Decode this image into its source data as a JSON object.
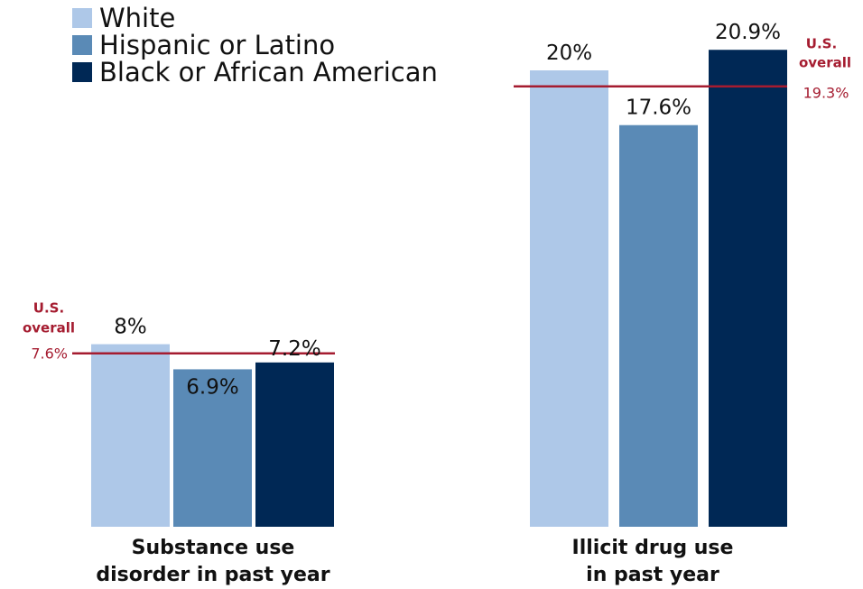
{
  "chart_data": {
    "type": "bar",
    "title": "",
    "xlabel": "",
    "ylabel": "",
    "grid": false,
    "legend_position": "top-left",
    "categories": [
      "Substance use disorder in past year",
      "Illicit drug use in past year"
    ],
    "category_lines": [
      [
        "Substance use",
        "disorder in past year"
      ],
      [
        "Illicit drug use",
        "in past year"
      ]
    ],
    "series": [
      {
        "name": "White",
        "color": "#aec8e8",
        "values": [
          8,
          20
        ],
        "labels": [
          "8%",
          "20%"
        ]
      },
      {
        "name": "Hispanic or Latino",
        "color": "#5a8ab6",
        "values": [
          6.9,
          17.6
        ],
        "labels": [
          "6.9%",
          "17.6%"
        ]
      },
      {
        "name": "Black or African American",
        "color": "#002855",
        "values": [
          7.2,
          20.9
        ],
        "labels": [
          "7.2%",
          "20.9%"
        ]
      }
    ],
    "reference_lines": [
      {
        "group": 0,
        "name_lines": [
          "U.S.",
          "overall"
        ],
        "value": 7.6,
        "label": "7.6%",
        "color": "#a51c30"
      },
      {
        "group": 1,
        "name_lines": [
          "U.S.",
          "overall"
        ],
        "value": 19.3,
        "label": "19.3%",
        "color": "#a51c30"
      }
    ],
    "ylim": [
      0,
      21.5
    ]
  }
}
